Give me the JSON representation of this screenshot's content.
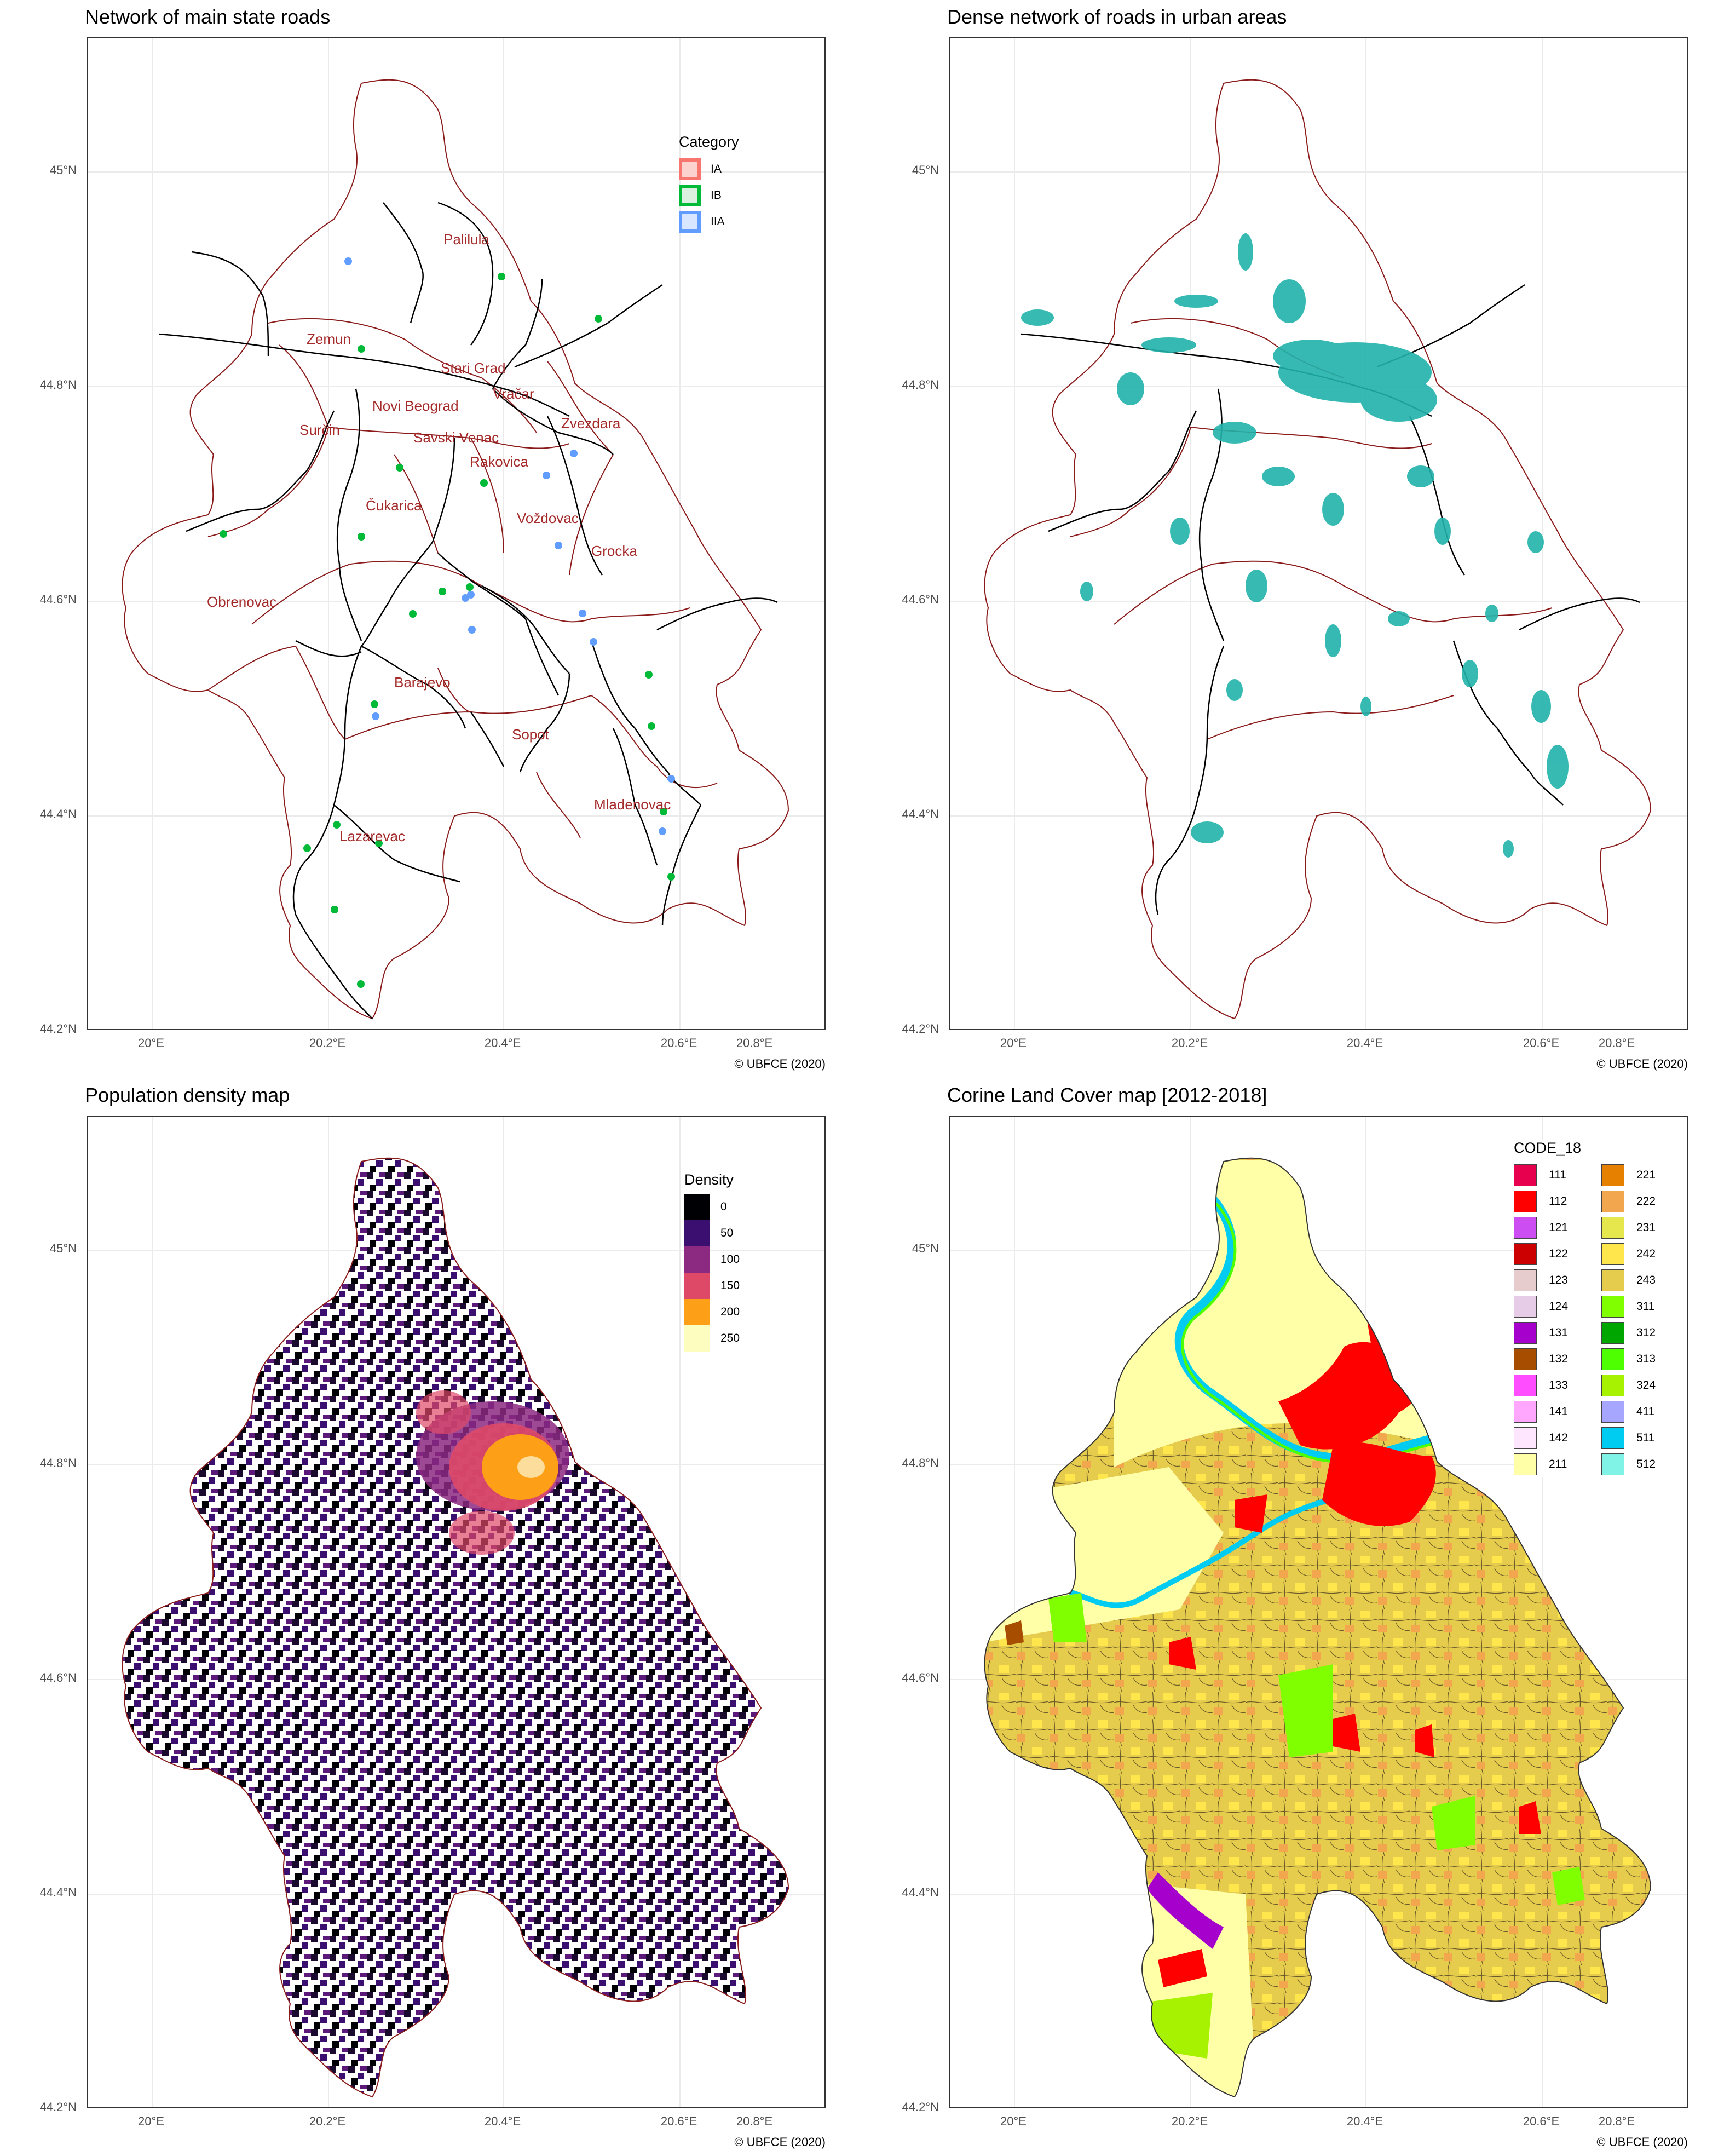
{
  "axes": {
    "y_ticks": [
      "45°N",
      "44.8°N",
      "44.6°N",
      "44.4°N",
      "44.2°N"
    ],
    "x_ticks": [
      "20°E",
      "20.2°E",
      "20.4°E",
      "20.6°E",
      "20.8°E"
    ]
  },
  "credit": "© UBFCE (2020)",
  "colors": {
    "boundary": "#8b1a1a",
    "road": "#000000",
    "label": "#a52a2a",
    "ia": "#f8766d",
    "ib": "#00ba38",
    "iia": "#619cff",
    "urban_road": "#20b2aa"
  },
  "panels": {
    "roads": {
      "title": "Network of main state roads",
      "legend_title": "Category",
      "legend": [
        {
          "label": "IA",
          "color": "#f8766d"
        },
        {
          "label": "IB",
          "color": "#00ba38"
        },
        {
          "label": "IIA",
          "color": "#619cff"
        }
      ],
      "municipalities": [
        "Palilula",
        "Zemun",
        "Stari Grad",
        "Vračar",
        "Novi Beograd",
        "Surčin",
        "Savski Venac",
        "Zvezdara",
        "Rakovica",
        "Čukarica",
        "Voždovac",
        "Grocka",
        "Obrenovac",
        "Barajevo",
        "Sopot",
        "Mladenovac",
        "Lazarevac"
      ]
    },
    "urban": {
      "title": "Dense network of roads in urban areas"
    },
    "density": {
      "title": "Population density map",
      "legend_title": "Density",
      "legend": [
        {
          "label": "0",
          "color": "#000004"
        },
        {
          "label": "50",
          "color": "#3b0f70"
        },
        {
          "label": "100",
          "color": "#8c2981"
        },
        {
          "label": "150",
          "color": "#de4968"
        },
        {
          "label": "200",
          "color": "#fe9f18"
        },
        {
          "label": "250",
          "color": "#fcfdbf"
        }
      ]
    },
    "clc": {
      "title": "Corine Land Cover map [2012-2018]",
      "legend_title": "CODE_18",
      "legend": [
        {
          "label": "111",
          "color": "#e6004d"
        },
        {
          "label": "221",
          "color": "#e68000"
        },
        {
          "label": "112",
          "color": "#ff0000"
        },
        {
          "label": "222",
          "color": "#f2a64d"
        },
        {
          "label": "121",
          "color": "#cc4df2"
        },
        {
          "label": "231",
          "color": "#e6e64d"
        },
        {
          "label": "122",
          "color": "#cc0000"
        },
        {
          "label": "242",
          "color": "#ffe64d"
        },
        {
          "label": "123",
          "color": "#e6cccc"
        },
        {
          "label": "243",
          "color": "#e6cc4d"
        },
        {
          "label": "124",
          "color": "#e6cce6"
        },
        {
          "label": "311",
          "color": "#80ff00"
        },
        {
          "label": "131",
          "color": "#a600cc"
        },
        {
          "label": "312",
          "color": "#00a600"
        },
        {
          "label": "132",
          "color": "#a64d00"
        },
        {
          "label": "313",
          "color": "#4dff00"
        },
        {
          "label": "133",
          "color": "#ff4dff"
        },
        {
          "label": "324",
          "color": "#a6f200"
        },
        {
          "label": "141",
          "color": "#ffa6ff"
        },
        {
          "label": "411",
          "color": "#a6a6ff"
        },
        {
          "label": "142",
          "color": "#ffe6ff"
        },
        {
          "label": "511",
          "color": "#00ccf2"
        },
        {
          "label": "211",
          "color": "#ffffa8"
        },
        {
          "label": "512",
          "color": "#80f2e6"
        }
      ]
    }
  }
}
